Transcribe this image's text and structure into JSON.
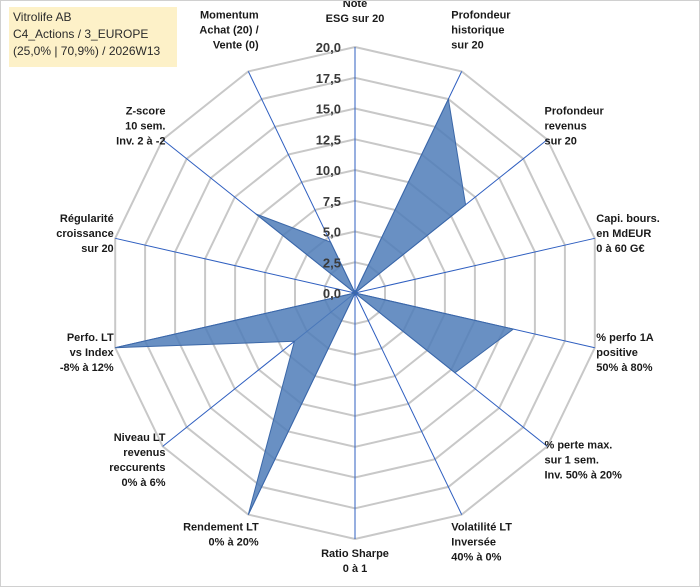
{
  "header": {
    "company": "Vitrolife AB",
    "category": "C4_Actions / 3_EUROPE",
    "stats": "(25,0% | 70,9%) / 2026W13"
  },
  "chart_data": {
    "type": "radar",
    "title": "",
    "rlim": [
      0,
      20
    ],
    "rticks": [
      "0,0",
      "2,5",
      "5,0",
      "7,5",
      "10,0",
      "12,5",
      "15,0",
      "17,5",
      "20,0"
    ],
    "grid": true,
    "colors": {
      "fill": "#4f7db8",
      "stroke": "#3c68a8",
      "grid": "#c8c8c8",
      "spoke": "#2f5fc0"
    },
    "categories": [
      "Note ESG sur 20",
      "Profondeur historique sur 20",
      "Profondeur revenus sur 20",
      "Capi. bours. en MdEUR 0 à 60 G€",
      "% perfo 1A positive 50% à 80%",
      "% perte max. sur 1 sem. Inv. 50% à 20%",
      "Volatilité LT Inversée 40% à 0%",
      "Ratio Sharpe 0 à 1",
      "Rendement LT 0% à 20%",
      "Niveau LT revenus reccurents 0% à 6%",
      "Perfo. LT vs Index -8% à 12%",
      "Régularité croissance sur 20",
      "Z-score 10 sem. Inv. 2 à -2",
      "Momentum Achat (20) / Vente (0)"
    ],
    "category_lines": [
      [
        "Note",
        "ESG sur 20"
      ],
      [
        "Profondeur",
        "historique",
        "sur 20"
      ],
      [
        "Profondeur",
        "revenus",
        "sur 20"
      ],
      [
        "Capi. bours.",
        "en MdEUR",
        "0 à 60 G€"
      ],
      [
        "% perfo 1A",
        "positive",
        "50% à 80%"
      ],
      [
        "% perte max.",
        "sur 1 sem.",
        "Inv. 50% à 20%"
      ],
      [
        "Volatilité LT",
        "Inversée",
        "40% à 0%"
      ],
      [
        "Ratio Sharpe",
        "0 à 1"
      ],
      [
        "Rendement LT",
        "0% à 20%"
      ],
      [
        "Niveau LT",
        "revenus",
        "reccurents",
        "0% à 6%"
      ],
      [
        "Perfo. LT",
        "vs Index",
        "-8% à 12%"
      ],
      [
        "Régularité",
        "croissance",
        "sur 20"
      ],
      [
        "Z-score",
        "10 sem.",
        "Inv. 2 à -2"
      ],
      [
        "Momentum",
        "Achat (20) /",
        "Vente (0)"
      ]
    ],
    "values": [
      0,
      17.5,
      11.5,
      0,
      13.2,
      10.4,
      0,
      0,
      20,
      6.3,
      20,
      0,
      10.3,
      4.6
    ]
  }
}
